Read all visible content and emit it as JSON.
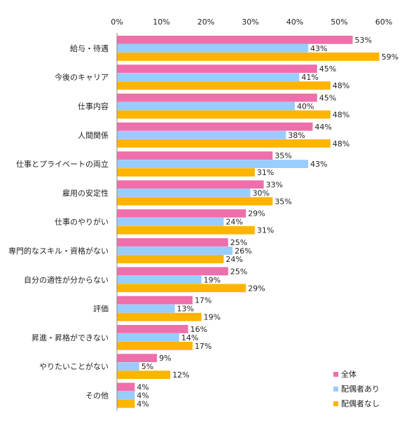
{
  "chart_data": {
    "type": "bar",
    "orientation": "horizontal",
    "categories": [
      "給与・待遇",
      "今後のキャリア",
      "仕事内容",
      "人間関係",
      "仕事とプライベートの両立",
      "雇用の安定性",
      "仕事のやりがい",
      "専門的なスキル・資格がない",
      "自分の適性が分からない",
      "評価",
      "昇進・昇格ができない",
      "やりたいことがない",
      "その他"
    ],
    "series": [
      {
        "name": "全体",
        "color": "#ef6fac",
        "values": [
          53,
          45,
          45,
          44,
          35,
          33,
          29,
          25,
          25,
          17,
          16,
          9,
          4
        ]
      },
      {
        "name": "配偶者あり",
        "color": "#99ccff",
        "values": [
          43,
          41,
          40,
          38,
          43,
          30,
          24,
          26,
          19,
          13,
          14,
          5,
          4
        ]
      },
      {
        "name": "配偶者なし",
        "color": "#ffb400",
        "values": [
          59,
          48,
          48,
          48,
          31,
          35,
          31,
          24,
          29,
          19,
          17,
          12,
          4
        ]
      }
    ],
    "xticks": [
      "0%",
      "10%",
      "20%",
      "30%",
      "40%",
      "50%",
      "60%"
    ],
    "xlim": [
      0,
      60
    ],
    "value_suffix": "%",
    "legend_position": "bottom-right",
    "grid": false
  }
}
